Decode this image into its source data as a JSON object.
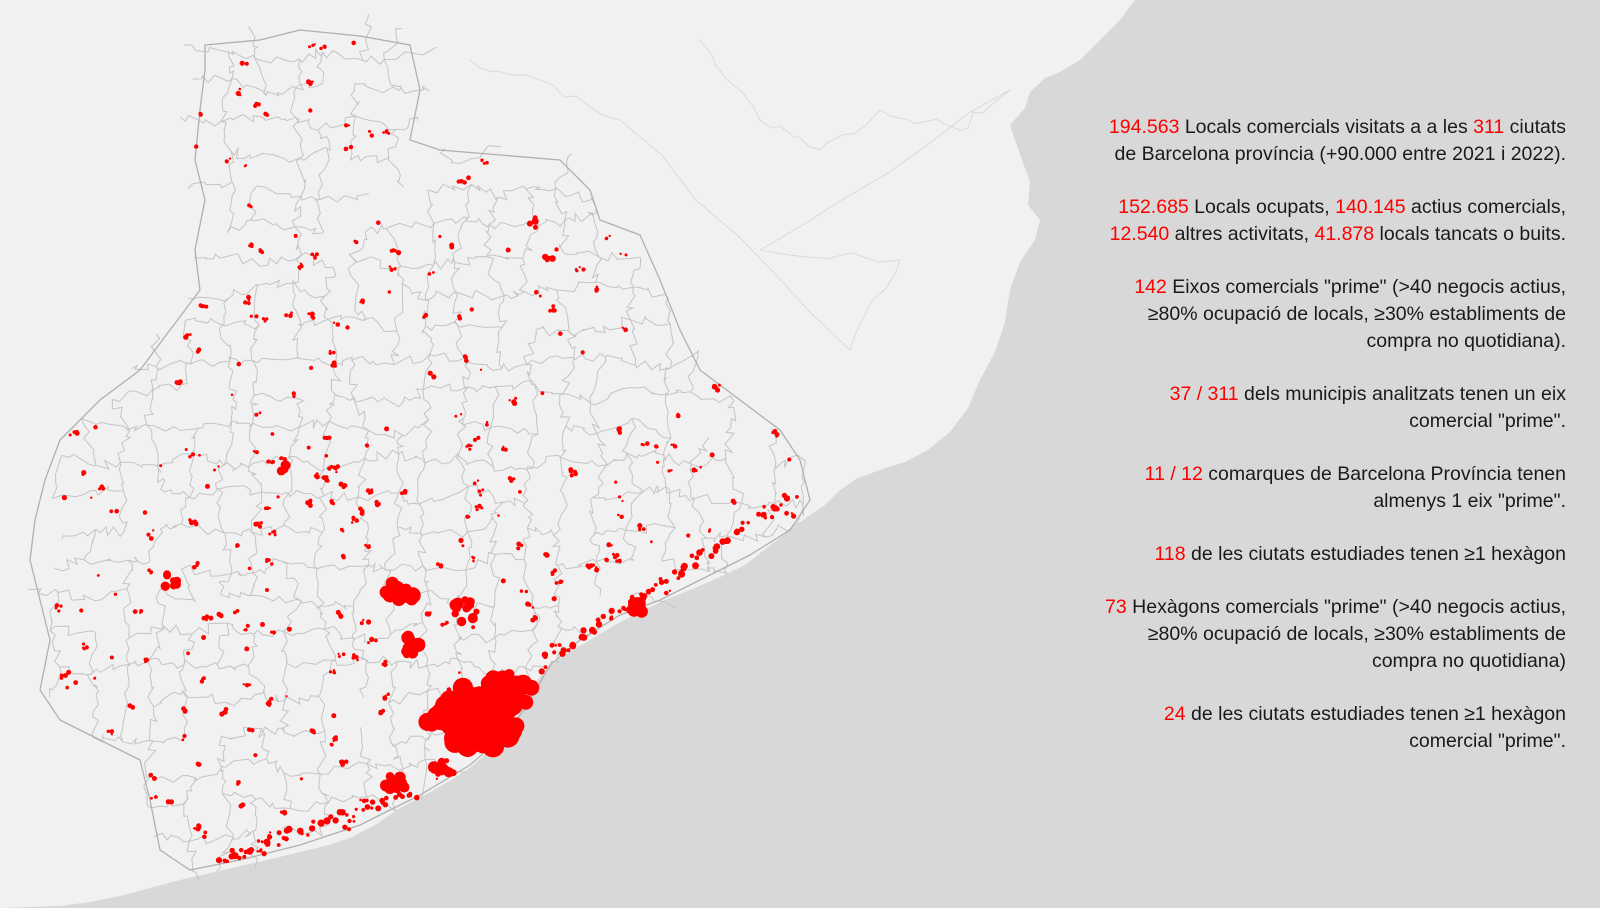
{
  "colors": {
    "sea": "#d8d8d8",
    "land": "#f1f1f1",
    "boundary": "#bdbdbd",
    "highlight": "#ff0000",
    "text": "#1a1a1a"
  },
  "stats": [
    {
      "id": "visited",
      "parts": [
        {
          "t": "194.563",
          "hl": true
        },
        {
          "t": " Locals comercials visitats a a les "
        },
        {
          "t": "311",
          "hl": true
        },
        {
          "t": " ciutats"
        },
        {
          "br": true
        },
        {
          "t": "de Barcelona província (+90.000 entre 2021 i 2022)."
        }
      ]
    },
    {
      "id": "occupied",
      "parts": [
        {
          "t": "152.685",
          "hl": true
        },
        {
          "t": " Locals ocupats, "
        },
        {
          "t": "140.145",
          "hl": true
        },
        {
          "t": " actius comercials,"
        },
        {
          "br": true
        },
        {
          "t": "12.540",
          "hl": true
        },
        {
          "t": " altres activitats, "
        },
        {
          "t": "41.878",
          "hl": true
        },
        {
          "t": " locals tancats o buits."
        }
      ]
    },
    {
      "id": "prime-axes",
      "parts": [
        {
          "t": "142",
          "hl": true
        },
        {
          "t": " Eixos comercials \"prime\" (>40 negocis actius,"
        },
        {
          "br": true
        },
        {
          "t": "≥80% ocupació de locals, ≥30% establiments de"
        },
        {
          "br": true
        },
        {
          "t": "compra no quotidiana)."
        }
      ]
    },
    {
      "id": "municipalities",
      "parts": [
        {
          "t": "37 / 311",
          "hl": true
        },
        {
          "t": " dels municipis analitzats tenen un eix"
        },
        {
          "br": true
        },
        {
          "t": "comercial \"prime\"."
        }
      ]
    },
    {
      "id": "comarques",
      "parts": [
        {
          "t": "11 / 12",
          "hl": true
        },
        {
          "t": " comarques de Barcelona Província tenen"
        },
        {
          "br": true
        },
        {
          "t": "almenys 1 eix \"prime\"."
        }
      ]
    },
    {
      "id": "cities-hexagon",
      "parts": [
        {
          "t": "118",
          "hl": true
        },
        {
          "t": " de les ciutats estudiades tenen ≥1 hexàgon"
        }
      ]
    },
    {
      "id": "prime-hexagons",
      "parts": [
        {
          "t": "73",
          "hl": true
        },
        {
          "t": " Hexàgons comercials \"prime\" (>40 negocis actius,"
        },
        {
          "br": true
        },
        {
          "t": "≥80% ocupació de locals, ≥30% establiments de"
        },
        {
          "br": true
        },
        {
          "t": "compra no quotidiana)"
        }
      ]
    },
    {
      "id": "cities-prime-hexagon",
      "parts": [
        {
          "t": "24",
          "hl": true
        },
        {
          "t": " de les ciutats estudiades tenen ≥1 hexàgon"
        },
        {
          "br": true
        },
        {
          "t": "comercial \"prime\"."
        }
      ]
    }
  ]
}
